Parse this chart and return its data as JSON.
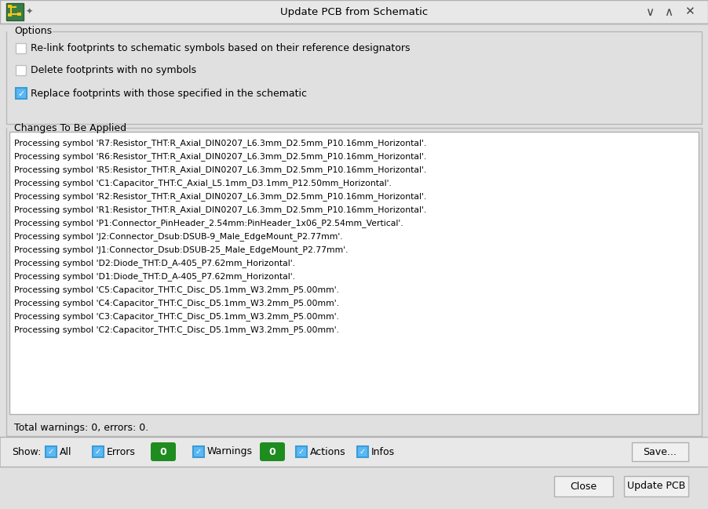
{
  "title": "Update PCB from Schematic",
  "bg_color": "#e0e0e0",
  "titlebar_text": "Update PCB from Schematic",
  "options_label": "Options",
  "checkbox1_text": "Re-link footprints to schematic symbols based on their reference designators",
  "checkbox2_text": "Delete footprints with no symbols",
  "checkbox3_text": "Replace footprints with those specified in the schematic",
  "changes_label": "Changes To Be Applied",
  "log_lines": [
    "Processing symbol 'R7:Resistor_THT:R_Axial_DIN0207_L6.3mm_D2.5mm_P10.16mm_Horizontal'.",
    "Processing symbol 'R6:Resistor_THT:R_Axial_DIN0207_L6.3mm_D2.5mm_P10.16mm_Horizontal'.",
    "Processing symbol 'R5:Resistor_THT:R_Axial_DIN0207_L6.3mm_D2.5mm_P10.16mm_Horizontal'.",
    "Processing symbol 'C1:Capacitor_THT:C_Axial_L5.1mm_D3.1mm_P12.50mm_Horizontal'.",
    "Processing symbol 'R2:Resistor_THT:R_Axial_DIN0207_L6.3mm_D2.5mm_P10.16mm_Horizontal'.",
    "Processing symbol 'R1:Resistor_THT:R_Axial_DIN0207_L6.3mm_D2.5mm_P10.16mm_Horizontal'.",
    "Processing symbol 'P1:Connector_PinHeader_2.54mm:PinHeader_1x06_P2.54mm_Vertical'.",
    "Processing symbol 'J2:Connector_Dsub:DSUB-9_Male_EdgeMount_P2.77mm'.",
    "Processing symbol 'J1:Connector_Dsub:DSUB-25_Male_EdgeMount_P2.77mm'.",
    "Processing symbol 'D2:Diode_THT:D_A-405_P7.62mm_Horizontal'.",
    "Processing symbol 'D1:Diode_THT:D_A-405_P7.62mm_Horizontal'.",
    "Processing symbol 'C5:Capacitor_THT:C_Disc_D5.1mm_W3.2mm_P5.00mm'.",
    "Processing symbol 'C4:Capacitor_THT:C_Disc_D5.1mm_W3.2mm_P5.00mm'.",
    "Processing symbol 'C3:Capacitor_THT:C_Disc_D5.1mm_W3.2mm_P5.00mm'.",
    "Processing symbol 'C2:Capacitor_THT:C_Disc_D5.1mm_W3.2mm_P5.00mm'."
  ],
  "summary_text": "Total warnings: 0, errors: 0.",
  "show_label": "Show:",
  "show_all": "All",
  "show_errors": "Errors",
  "show_warnings": "Warnings",
  "show_actions": "Actions",
  "show_infos": "Infos",
  "errors_count": "0",
  "warnings_count": "0",
  "btn_save": "Save...",
  "btn_close": "Close",
  "btn_update": "Update PCB",
  "log_bg": "#ffffff",
  "border_color": "#b0b0b0",
  "text_color": "#000000",
  "badge_green": "#1e8c1e",
  "badge_text": "#ffffff",
  "checkbox_border": "#c0c0c0",
  "checkbox_blue": "#4da6d4",
  "button_bg": "#f0f0f0",
  "button_border": "#b0b0b0",
  "groupbox_border": "#b8b8b8",
  "show_bar_bg": "#e8e8e8",
  "titlebar_bg": "#e8e8e8"
}
